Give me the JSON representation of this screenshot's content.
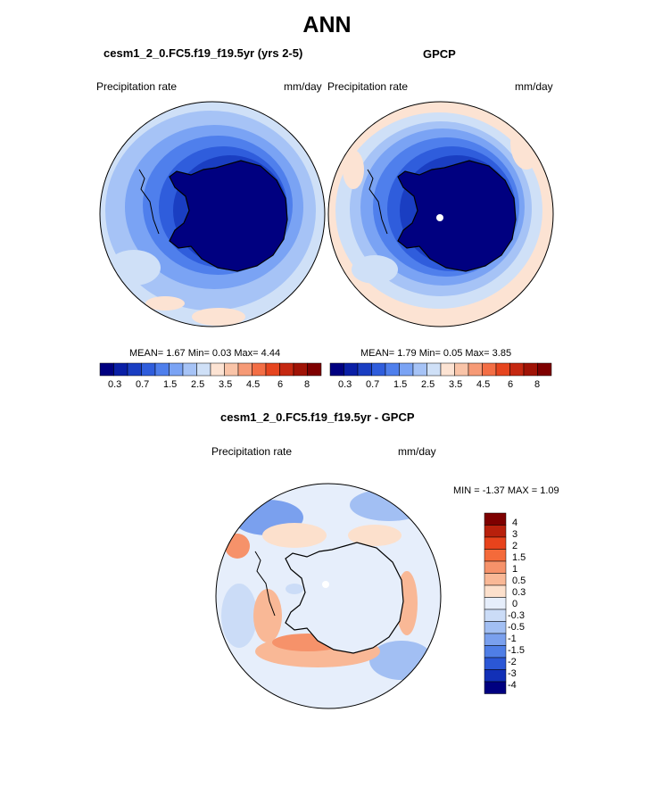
{
  "title": "ANN",
  "colors": {
    "cool": [
      "#000080",
      "#0a1fa6",
      "#1a3ec2",
      "#2f5ddc",
      "#4f7fec",
      "#7aa3f4",
      "#a6c3f6",
      "#cfe0f7"
    ],
    "warm": [
      "#fce3d3",
      "#f9c4a8",
      "#f69a76",
      "#f36e45",
      "#e6451f",
      "#c52811",
      "#a01306",
      "#7e0000"
    ],
    "diff": [
      "#7e0000",
      "#b8200c",
      "#e8431c",
      "#f46a3a",
      "#f6926a",
      "#f9b896",
      "#fce0cc",
      "#e6eefb",
      "#cbdcf7",
      "#a2bff3",
      "#7aa0ee",
      "#4f7ee6",
      "#2b57d6",
      "#1230b7",
      "#000080"
    ]
  },
  "left_panel": {
    "title": "cesm1_2_0.FC5.f19_f19.5yr (yrs 2-5)",
    "left_label": "Precipitation rate",
    "right_label": "mm/day",
    "stats": "MEAN=   1.67  Min=   0.03  Max=   4.44"
  },
  "right_panel": {
    "title": "GPCP",
    "left_label": "Precipitation rate",
    "right_label": "mm/day",
    "stats": "MEAN=   1.79  Min=   0.05  Max=   3.85"
  },
  "shared_ticks": [
    "0.3",
    "0.7",
    "1.5",
    "2.5",
    "3.5",
    "4.5",
    "6",
    "8"
  ],
  "diff_panel": {
    "title": "cesm1_2_0.FC5.f19_f19.5yr - GPCP",
    "left_label": "Precipitation rate",
    "right_label": "mm/day",
    "stats": "MIN =  -1.37 MAX =   1.09",
    "ticks": [
      "4",
      "3",
      "2",
      "1.5",
      "1",
      "0.5",
      "0.3",
      "0",
      "-0.3",
      "-0.5",
      "-1",
      "-1.5",
      "-2",
      "-3",
      "-4"
    ]
  }
}
